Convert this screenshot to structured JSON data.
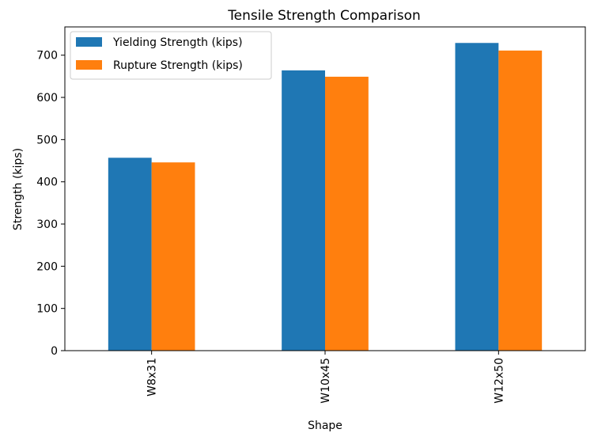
{
  "chart_data": {
    "type": "bar",
    "title": "Tensile Strength Comparison",
    "xlabel": "Shape",
    "ylabel": "Strength (kips)",
    "categories": [
      "W8x31",
      "W10x45",
      "W12x50"
    ],
    "series": [
      {
        "name": "Yielding Strength (kips)",
        "color": "#1f77b4",
        "values": [
          457,
          664,
          729
        ]
      },
      {
        "name": "Rupture Strength (kips)",
        "color": "#ff7f0e",
        "values": [
          446,
          649,
          711
        ]
      }
    ],
    "ylim": [
      0,
      767
    ],
    "yticks": [
      0,
      100,
      200,
      300,
      400,
      500,
      600,
      700
    ],
    "grid": false,
    "legend_position": "top-left",
    "x_tick_rotation": "vertical"
  }
}
